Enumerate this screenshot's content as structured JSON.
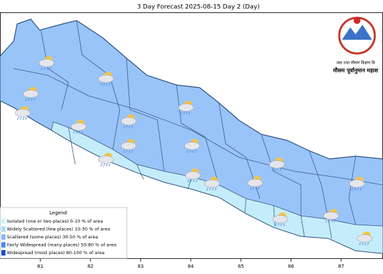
{
  "header": {
    "title": "3 Day Forecast 2025-08-15 Day 2 (Day)"
  },
  "logo": {
    "line1": "जल तथा मौसम विज्ञान वि",
    "line2": "मौसम पूर्वानुमान महाश"
  },
  "x_axis": {
    "ticks": [
      "81",
      "82",
      "83",
      "84",
      "85",
      "86",
      "87"
    ]
  },
  "legend": {
    "title": "Legend",
    "items": [
      "Isolated (one or two places)  0-10 % of area",
      "Widely Scattered (few places) 10-30 % of area",
      "Scattered (some places) 30-50  % of area",
      "Fairly Widespread (many places) 50-80 % of area",
      "Widespread (most places) 80-100 % of area"
    ]
  }
}
